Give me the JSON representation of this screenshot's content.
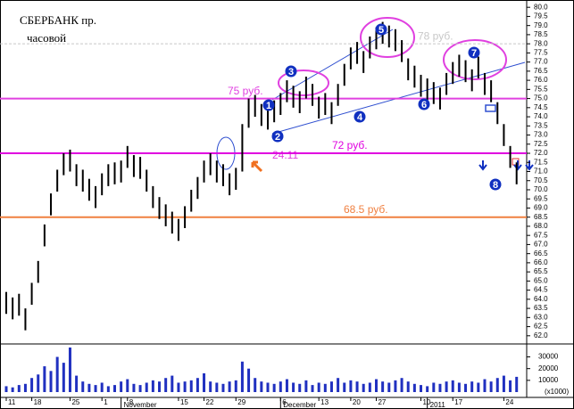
{
  "chart_data": {
    "type": "hlbar",
    "title": "СБЕРБАНК пр.",
    "subtitle": "часовой",
    "color": "#000000",
    "xlim": [
      -0.7,
      81.3
    ],
    "ylim": [
      61.6,
      80.4
    ],
    "high": [
      64.4,
      64.1,
      64.3,
      63.5,
      64.9,
      66.1,
      68.1,
      69.8,
      71.1,
      72.0,
      72.2,
      71.4,
      71.1,
      70.6,
      70.2,
      70.9,
      71.4,
      71.5,
      71.6,
      72.4,
      71.9,
      71.8,
      71.1,
      70.2,
      69.6,
      69.2,
      68.8,
      68.4,
      69.1,
      70.0,
      70.7,
      71.6,
      72.0,
      71.6,
      71.4,
      70.9,
      71.2,
      73.6,
      75.0,
      75.2,
      74.7,
      74.5,
      74.9,
      75.3,
      76.0,
      75.7,
      75.4,
      76.2,
      75.8,
      75.1,
      75.3,
      74.8,
      75.8,
      76.9,
      77.8,
      78.1,
      77.6,
      78.4,
      78.9,
      79.2,
      79.0,
      78.8,
      78.2,
      77.2,
      76.8,
      76.3,
      76.1,
      75.9,
      75.6,
      76.4,
      77.0,
      77.4,
      77.1,
      76.6,
      77.3,
      76.4,
      76.0,
      74.8,
      73.6,
      72.4,
      71.5
    ],
    "low": [
      63.2,
      62.9,
      63.1,
      62.3,
      63.7,
      64.9,
      66.9,
      68.6,
      69.9,
      70.8,
      71.0,
      70.2,
      69.9,
      69.4,
      69.0,
      69.7,
      70.2,
      70.3,
      70.4,
      71.2,
      70.7,
      70.6,
      69.9,
      69.0,
      68.4,
      68.0,
      67.6,
      67.2,
      67.9,
      68.8,
      69.5,
      70.4,
      70.8,
      70.4,
      70.2,
      69.7,
      70.0,
      71.0,
      73.4,
      74.0,
      73.5,
      73.3,
      73.7,
      74.1,
      74.8,
      74.5,
      74.2,
      75.0,
      74.6,
      73.9,
      74.1,
      73.6,
      74.6,
      75.7,
      76.6,
      76.9,
      76.4,
      77.2,
      77.7,
      78.0,
      77.8,
      77.6,
      77.0,
      76.0,
      75.6,
      75.1,
      74.9,
      74.7,
      74.4,
      75.2,
      75.8,
      76.2,
      75.9,
      75.4,
      76.1,
      75.2,
      74.8,
      73.6,
      72.4,
      71.2,
      70.3
    ],
    "yticks": [
      {
        "value": 62,
        "label": "62.0"
      },
      {
        "value": 62.5,
        "label": "62.5"
      },
      {
        "value": 63,
        "label": "63.0"
      },
      {
        "value": 63.5,
        "label": "63.5"
      },
      {
        "value": 64,
        "label": "64.0"
      },
      {
        "value": 64.5,
        "label": "64.5"
      },
      {
        "value": 65,
        "label": "65.0"
      },
      {
        "value": 65.5,
        "label": "65.5"
      },
      {
        "value": 66,
        "label": "66.0"
      },
      {
        "value": 66.5,
        "label": "66.5"
      },
      {
        "value": 67,
        "label": "67.0"
      },
      {
        "value": 67.5,
        "label": "67.5"
      },
      {
        "value": 68,
        "label": "68.0"
      },
      {
        "value": 68.5,
        "label": "68.5"
      },
      {
        "value": 69,
        "label": "69.0"
      },
      {
        "value": 69.5,
        "label": "69.5"
      },
      {
        "value": 70,
        "label": "70.0"
      },
      {
        "value": 70.5,
        "label": "70.5"
      },
      {
        "value": 71,
        "label": "71.0"
      },
      {
        "value": 71.5,
        "label": "71.5"
      },
      {
        "value": 72,
        "label": "72.0"
      },
      {
        "value": 72.5,
        "label": "72.5"
      },
      {
        "value": 73,
        "label": "73.0"
      },
      {
        "value": 73.5,
        "label": "73.5"
      },
      {
        "value": 74,
        "label": "74.0"
      },
      {
        "value": 74.5,
        "label": "74.5"
      },
      {
        "value": 75,
        "label": "75.0"
      },
      {
        "value": 75.5,
        "label": "75.5"
      },
      {
        "value": 76,
        "label": "76.0"
      },
      {
        "value": 76.5,
        "label": "76.5"
      },
      {
        "value": 77,
        "label": "77.0"
      },
      {
        "value": 77.5,
        "label": "77.5"
      },
      {
        "value": 78,
        "label": "78.0"
      },
      {
        "value": 78.5,
        "label": "78.5"
      },
      {
        "value": 79,
        "label": "79.0"
      },
      {
        "value": 79.5,
        "label": "79.5"
      },
      {
        "value": 80,
        "label": "80.0"
      }
    ],
    "xticks": [
      {
        "value": 0,
        "label": "11"
      },
      {
        "value": 4,
        "label": "18"
      },
      {
        "value": 10,
        "label": "25"
      },
      {
        "value": 15,
        "label": "1"
      },
      {
        "value": 19,
        "label": "8"
      },
      {
        "value": 27,
        "label": "15"
      },
      {
        "value": 31,
        "label": "22"
      },
      {
        "value": 36,
        "label": "29"
      },
      {
        "value": 43,
        "label": "6"
      },
      {
        "value": 49,
        "label": "13"
      },
      {
        "value": 54,
        "label": "20"
      },
      {
        "value": 58,
        "label": "27"
      },
      {
        "value": 65,
        "label": "10"
      },
      {
        "value": 70,
        "label": "17"
      },
      {
        "value": 78,
        "label": "24"
      }
    ],
    "months": [
      {
        "value": 18,
        "label": "November"
      },
      {
        "value": 43,
        "label": "December"
      },
      {
        "value": 66,
        "label": "2011"
      }
    ],
    "volume": {
      "color": "#2030c0",
      "ylim": [
        0,
        38000
      ],
      "yticks": [
        10000,
        20000,
        30000
      ],
      "unit_label": "(x1000)",
      "values": [
        5000,
        4000,
        6000,
        7000,
        12000,
        15000,
        22000,
        18000,
        30000,
        25000,
        38000,
        14000,
        9000,
        7000,
        6000,
        8000,
        5000,
        6000,
        9000,
        11000,
        7000,
        6000,
        8000,
        10000,
        9000,
        12000,
        14000,
        8000,
        9000,
        10000,
        12000,
        16000,
        9000,
        8000,
        7000,
        9000,
        10000,
        26000,
        20000,
        12000,
        9000,
        8000,
        7000,
        9000,
        11000,
        8000,
        7000,
        10000,
        6000,
        8000,
        7000,
        9000,
        12000,
        8000,
        10000,
        9000,
        7000,
        8000,
        11000,
        9000,
        8000,
        10000,
        12000,
        9000,
        7000,
        6000,
        5000,
        8000,
        7000,
        9000,
        10000,
        8000,
        7000,
        9000,
        8000,
        11000,
        9000,
        12000,
        14000,
        10000,
        13000
      ]
    },
    "levels": [
      {
        "value": 78,
        "label": "78 руб.",
        "color": "#c8c8c8"
      },
      {
        "value": 75,
        "label": "75 руб.",
        "color": "#e040e0"
      },
      {
        "value": 72,
        "label": "72 руб.",
        "color": "#e000e0"
      },
      {
        "value": 68.5,
        "label": "68.5 руб.",
        "color": "#f08040"
      }
    ],
    "annotations": {
      "date": "24.11",
      "points": [
        "1",
        "2",
        "3",
        "4",
        "5",
        "6",
        "7",
        "8"
      ]
    }
  }
}
